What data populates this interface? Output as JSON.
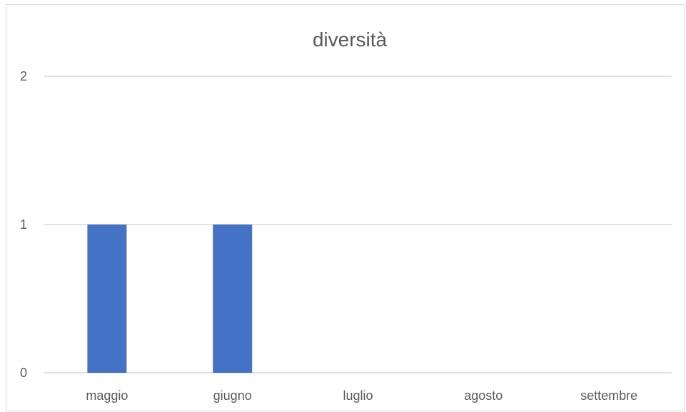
{
  "colors": {
    "bar": "#4472c4",
    "grid": "#d9d9d9",
    "text": "#595959"
  },
  "chart_data": {
    "type": "bar",
    "title": "diversità",
    "categories": [
      "maggio",
      "giugno",
      "luglio",
      "agosto",
      "settembre"
    ],
    "values": [
      1,
      1,
      0,
      0,
      0
    ],
    "yticks": [
      "0",
      "1",
      "2"
    ],
    "ylim": [
      0,
      2
    ],
    "grid": true,
    "legend": "none"
  }
}
